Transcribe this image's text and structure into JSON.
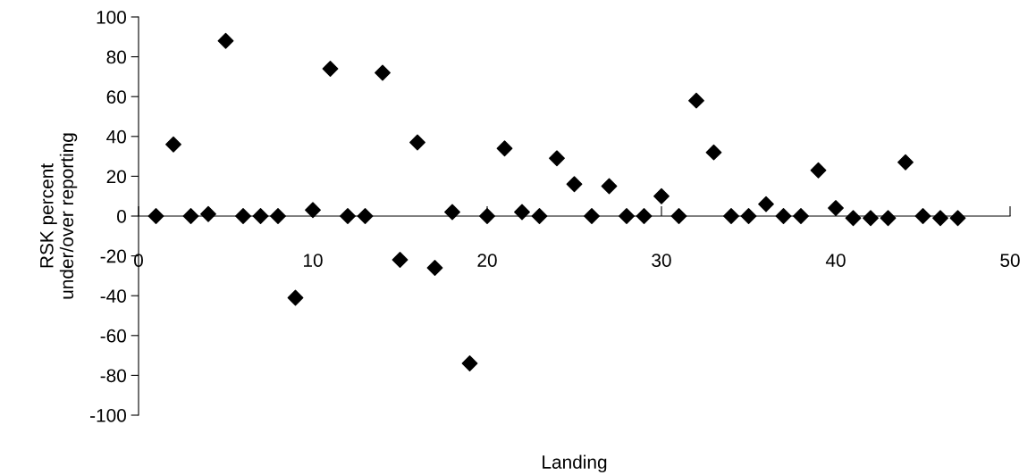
{
  "chart_data": {
    "type": "scatter",
    "xlabel": "Landing",
    "ylabel": "RSK percent\nunder/over reporting",
    "x": [
      1,
      2,
      3,
      4,
      5,
      6,
      7,
      8,
      9,
      10,
      11,
      12,
      13,
      14,
      15,
      16,
      17,
      18,
      19,
      20,
      21,
      22,
      23,
      24,
      25,
      26,
      27,
      28,
      29,
      30,
      31,
      32,
      33,
      34,
      35,
      36,
      37,
      38,
      39,
      40,
      41,
      42,
      43,
      44,
      45,
      46,
      47
    ],
    "values": [
      0,
      36,
      0,
      1,
      88,
      0,
      0,
      0,
      -41,
      3,
      74,
      0,
      0,
      72,
      -22,
      37,
      -26,
      2,
      -74,
      0,
      34,
      2,
      0,
      29,
      16,
      0,
      15,
      0,
      0,
      10,
      0,
      58,
      32,
      0,
      0,
      6,
      0,
      0,
      23,
      4,
      -1,
      -1,
      -1,
      27,
      0,
      -1,
      -1
    ],
    "color": "#000000",
    "marker": "diamond",
    "xlim": [
      0,
      50
    ],
    "xticks": [
      0,
      10,
      20,
      30,
      40,
      50
    ],
    "ylim": [
      -100,
      100
    ],
    "yticks": [
      -100,
      -80,
      -60,
      -40,
      -20,
      0,
      20,
      40,
      60,
      80,
      100
    ],
    "grid": false
  }
}
